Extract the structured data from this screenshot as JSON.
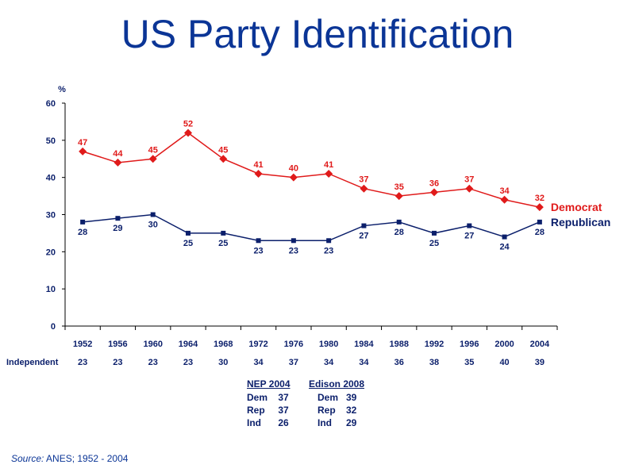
{
  "title": "US Party Identification",
  "chart_data": {
    "type": "line",
    "ylabel": "%",
    "ylim": [
      0,
      60
    ],
    "yticks": [
      0,
      10,
      20,
      30,
      40,
      50,
      60
    ],
    "categories": [
      "1952",
      "1956",
      "1960",
      "1964",
      "1968",
      "1972",
      "1976",
      "1980",
      "1984",
      "1988",
      "1992",
      "1996",
      "2000",
      "2004"
    ],
    "series": [
      {
        "name": "Democrat",
        "color": "#e01a1a",
        "marker": "diamond",
        "values": [
          47,
          44,
          45,
          52,
          45,
          41,
          40,
          41,
          37,
          35,
          36,
          37,
          34,
          32
        ]
      },
      {
        "name": "Republican",
        "color": "#0b1f6b",
        "marker": "square",
        "values": [
          28,
          29,
          30,
          25,
          25,
          23,
          23,
          23,
          27,
          28,
          25,
          27,
          24,
          28
        ]
      }
    ],
    "independent": {
      "label": "Independent",
      "values": [
        23,
        23,
        23,
        23,
        30,
        34,
        37,
        34,
        34,
        36,
        38,
        35,
        40,
        39
      ]
    },
    "legend_placement": "right",
    "grid": false
  },
  "tables": {
    "nep": {
      "title": "NEP 2004",
      "rows": [
        {
          "label": "Dem",
          "value": "37"
        },
        {
          "label": "Rep",
          "value": "37"
        },
        {
          "label": "Ind",
          "value": "26"
        }
      ]
    },
    "edison": {
      "title": "Edison 2008",
      "rows": [
        {
          "label": "Dem",
          "value": "39"
        },
        {
          "label": "Rep",
          "value": "32"
        },
        {
          "label": "Ind",
          "value": "29"
        }
      ]
    }
  },
  "source": {
    "label": "Source:",
    "text": "ANES; 1952 - 2004"
  }
}
